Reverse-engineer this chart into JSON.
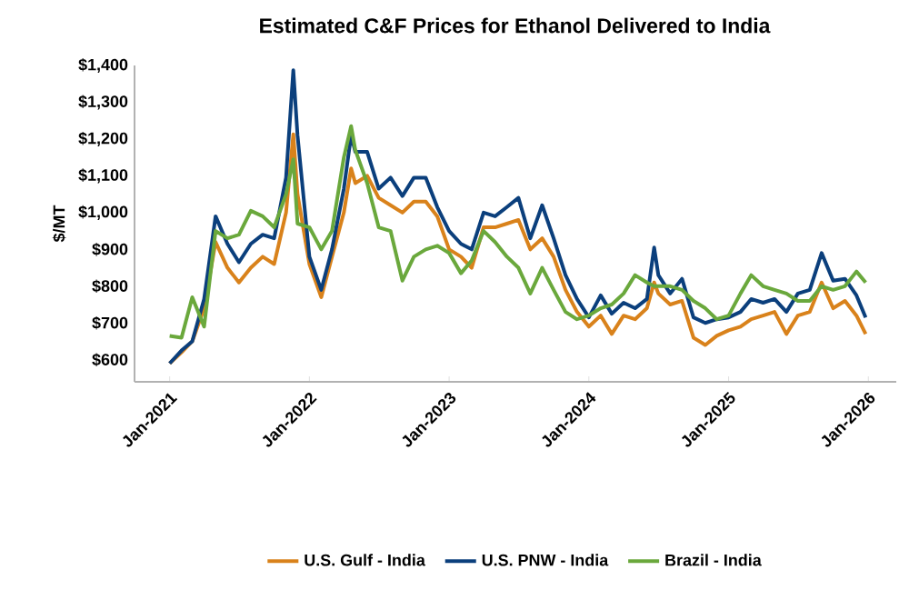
{
  "chart_data": {
    "type": "line",
    "title": "Estimated C&F Prices for Ethanol Delivered to India",
    "ylabel": "$/MT",
    "x": [
      "2021-01-01",
      "2021-02-01",
      "2021-03-01",
      "2021-04-01",
      "2021-05-01",
      "2021-06-01",
      "2021-07-01",
      "2021-08-01",
      "2021-09-01",
      "2021-10-01",
      "2021-11-01",
      "2021-11-20",
      "2021-12-01",
      "2022-01-01",
      "2022-02-01",
      "2022-03-01",
      "2022-04-01",
      "2022-04-20",
      "2022-05-01",
      "2022-06-01",
      "2022-07-01",
      "2022-08-01",
      "2022-09-01",
      "2022-10-01",
      "2022-11-01",
      "2022-12-01",
      "2023-01-01",
      "2023-02-01",
      "2023-03-01",
      "2023-04-01",
      "2023-05-01",
      "2023-06-01",
      "2023-07-01",
      "2023-08-01",
      "2023-09-01",
      "2023-10-01",
      "2023-11-01",
      "2023-12-01",
      "2024-01-01",
      "2024-02-01",
      "2024-03-01",
      "2024-04-01",
      "2024-05-01",
      "2024-06-01",
      "2024-06-20",
      "2024-07-01",
      "2024-08-01",
      "2024-09-01",
      "2024-10-01",
      "2024-11-01",
      "2024-12-01",
      "2025-01-01",
      "2025-02-01",
      "2025-03-01",
      "2025-04-01",
      "2025-05-01",
      "2025-06-01",
      "2025-07-01",
      "2025-08-01",
      "2025-09-01",
      "2025-10-01",
      "2025-11-01",
      "2025-12-01",
      "2025-12-25"
    ],
    "series": [
      {
        "name": "U.S. Gulf - India",
        "color": "#d9821b",
        "values": [
          590,
          620,
          650,
          740,
          920,
          850,
          810,
          850,
          880,
          860,
          1000,
          1213,
          1050,
          860,
          770,
          880,
          1000,
          1120,
          1080,
          1100,
          1040,
          1020,
          1000,
          1030,
          1030,
          990,
          900,
          880,
          850,
          960,
          960,
          970,
          980,
          900,
          930,
          880,
          790,
          730,
          690,
          720,
          670,
          720,
          710,
          740,
          810,
          780,
          750,
          760,
          660,
          640,
          665,
          680,
          690,
          710,
          720,
          730,
          670,
          720,
          730,
          810,
          740,
          760,
          720,
          670
        ]
      },
      {
        "name": "U.S. PNW - India",
        "color": "#0b3f7c",
        "values": [
          590,
          625,
          650,
          765,
          990,
          915,
          865,
          915,
          940,
          930,
          1095,
          1387,
          1210,
          880,
          790,
          900,
          1065,
          1210,
          1165,
          1165,
          1065,
          1095,
          1045,
          1095,
          1095,
          1015,
          950,
          915,
          900,
          1000,
          990,
          1015,
          1040,
          930,
          1020,
          930,
          830,
          765,
          715,
          775,
          725,
          755,
          740,
          765,
          905,
          830,
          780,
          820,
          715,
          700,
          710,
          715,
          730,
          765,
          755,
          765,
          730,
          780,
          790,
          890,
          815,
          820,
          775,
          715
        ]
      },
      {
        "name": "Brazil - India",
        "color": "#6aa83c",
        "values": [
          665,
          660,
          770,
          690,
          950,
          930,
          940,
          1005,
          990,
          960,
          1050,
          1145,
          970,
          960,
          900,
          950,
          1150,
          1235,
          1170,
          1080,
          960,
          950,
          815,
          880,
          900,
          910,
          890,
          835,
          870,
          950,
          920,
          880,
          850,
          780,
          850,
          790,
          730,
          710,
          720,
          740,
          750,
          780,
          830,
          810,
          800,
          800,
          800,
          790,
          760,
          740,
          710,
          720,
          780,
          830,
          800,
          790,
          780,
          760,
          760,
          800,
          790,
          800,
          840,
          810
        ]
      }
    ],
    "xlim": [
      "2020-10-01",
      "2026-03-15"
    ],
    "xticks": [
      {
        "value": "2021-01-01",
        "label": "Jan-2021"
      },
      {
        "value": "2022-01-01",
        "label": "Jan-2022"
      },
      {
        "value": "2023-01-01",
        "label": "Jan-2023"
      },
      {
        "value": "2024-01-01",
        "label": "Jan-2024"
      },
      {
        "value": "2025-01-01",
        "label": "Jan-2025"
      },
      {
        "value": "2026-01-01",
        "label": "Jan-2026"
      }
    ],
    "ylim": [
      540,
      1400
    ],
    "yticks": [
      {
        "value": 600,
        "label": "$600"
      },
      {
        "value": 700,
        "label": "$700"
      },
      {
        "value": 800,
        "label": "$800"
      },
      {
        "value": 900,
        "label": "$900"
      },
      {
        "value": 1000,
        "label": "$1,000"
      },
      {
        "value": 1100,
        "label": "$1,100"
      },
      {
        "value": 1200,
        "label": "$1,200"
      },
      {
        "value": 1300,
        "label": "$1,300"
      },
      {
        "value": 1400,
        "label": "$1,400"
      }
    ],
    "legend": "bottom",
    "grid": false,
    "marker": "none",
    "line_style": "solid"
  }
}
